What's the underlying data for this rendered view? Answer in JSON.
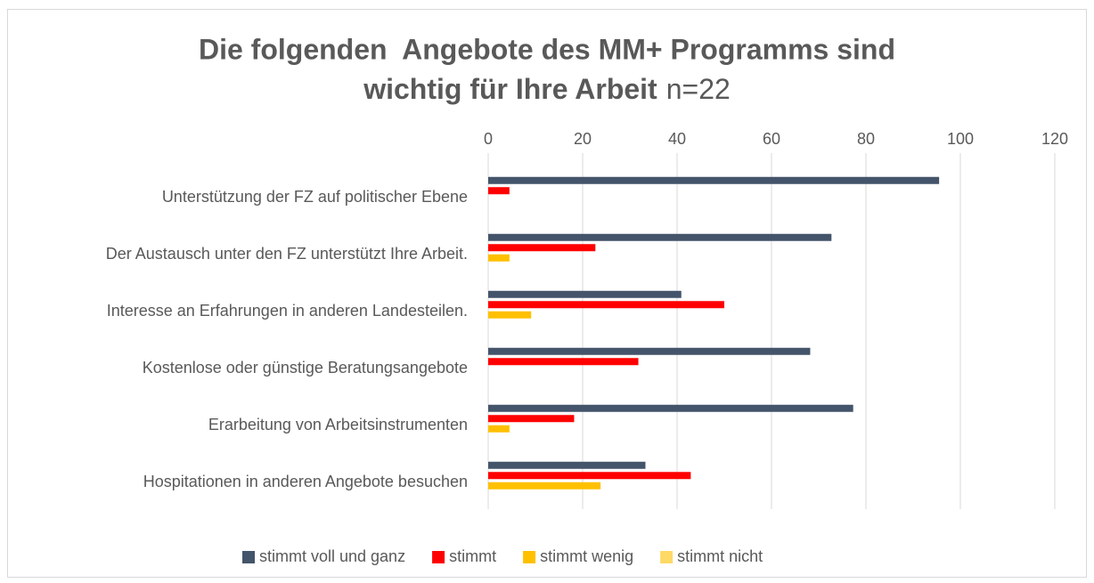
{
  "chart_data": {
    "type": "bar",
    "orientation": "horizontal",
    "title": [
      "Die folgenden  Angebote des MM+ Programms sind",
      "wichtig für Ihre Arbeit"
    ],
    "subtitle": "n=22",
    "categories": [
      "Unterstützung der FZ auf politischer Ebene",
      "Der Austausch unter den FZ unterstützt Ihre Arbeit.",
      "Interesse an Erfahrungen in anderen Landesteilen.",
      "Kostenlose oder günstige Beratungsangebote",
      "Erarbeitung von Arbeitsinstrumenten",
      "Hospitationen in anderen Angebote besuchen"
    ],
    "series": [
      {
        "name": "stimmt voll und ganz",
        "color": "#44546a",
        "values": [
          95.5,
          72.7,
          40.9,
          68.2,
          77.3,
          33.3
        ]
      },
      {
        "name": "stimmt",
        "color": "#ff0000",
        "values": [
          4.5,
          22.7,
          50,
          31.8,
          18.2,
          42.9
        ]
      },
      {
        "name": "stimmt wenig",
        "color": "#ffc000",
        "values": [
          0,
          4.5,
          9.1,
          0,
          4.5,
          23.8
        ]
      },
      {
        "name": "stimmt nicht",
        "color": "#ffd966",
        "values": [
          0,
          0,
          0,
          0,
          0,
          0
        ]
      }
    ],
    "xlim": [
      0,
      120
    ],
    "xticks": [
      0,
      20,
      40,
      60,
      80,
      100,
      120
    ],
    "grid": true,
    "legend": "bottom"
  }
}
